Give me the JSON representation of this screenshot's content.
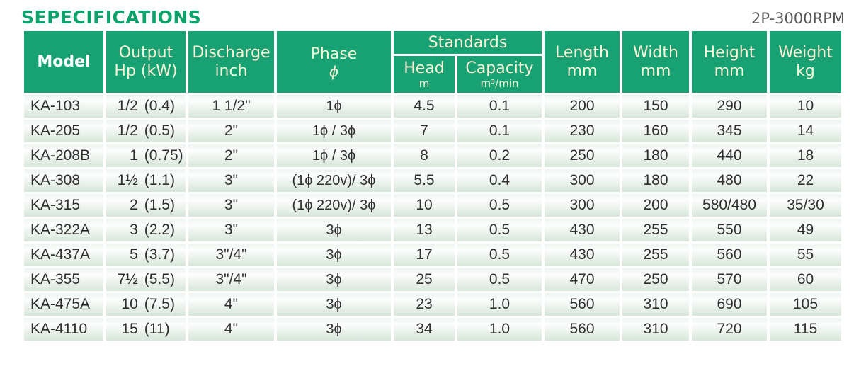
{
  "page": {
    "title": "SEPECIFICATIONS",
    "rpm_label": "2P-3000RPM"
  },
  "colors": {
    "header_green": "#18a273",
    "title_green": "#0ba36c",
    "rpm_gray": "#56585c",
    "header_text_cream": "#f9f2d8",
    "body_text": "#2f2f2f",
    "row_green_tint": "#d7e6da"
  },
  "table": {
    "headers": {
      "model": "Model",
      "output": {
        "label": "Output",
        "unit": "Hp (kW)"
      },
      "discharge": {
        "label": "Discharge",
        "unit": "inch"
      },
      "phase": {
        "label": "Phase",
        "unit": "ϕ"
      },
      "standards": "Standards",
      "head": {
        "label": "Head",
        "unit": "m"
      },
      "capacity": {
        "label": "Capacity",
        "unit": "m³/min"
      },
      "length": {
        "label": "Length",
        "unit": "mm"
      },
      "width": {
        "label": "Width",
        "unit": "mm"
      },
      "height": {
        "label": "Height",
        "unit": "mm"
      },
      "weight": {
        "label": "Weight",
        "unit": "kg"
      }
    },
    "rows": [
      {
        "model": "KA-103",
        "hp": "1/2",
        "kw": "(0.4)",
        "discharge": "1 1/2\"",
        "phase": "1ϕ",
        "head": "4.5",
        "capacity": "0.1",
        "length": "200",
        "width": "150",
        "height": "290",
        "weight": "10"
      },
      {
        "model": "KA-205",
        "hp": "1/2",
        "kw": "(0.5)",
        "discharge": "2\"",
        "phase": "1ϕ / 3ϕ",
        "head": "7",
        "capacity": "0.1",
        "length": "230",
        "width": "160",
        "height": "345",
        "weight": "14"
      },
      {
        "model": "KA-208B",
        "hp": "1",
        "kw": "(0.75)",
        "discharge": "2\"",
        "phase": "1ϕ / 3ϕ",
        "head": "8",
        "capacity": "0.2",
        "length": "250",
        "width": "180",
        "height": "440",
        "weight": "18"
      },
      {
        "model": "KA-308",
        "hp": "1½",
        "kw": "(1.1)",
        "discharge": "3\"",
        "phase": "(1ϕ 220v)/ 3ϕ",
        "head": "5.5",
        "capacity": "0.4",
        "length": "300",
        "width": "180",
        "height": "480",
        "weight": "22"
      },
      {
        "model": "KA-315",
        "hp": "2",
        "kw": "(1.5)",
        "discharge": "3\"",
        "phase": "(1ϕ 220v)/ 3ϕ",
        "head": "10",
        "capacity": "0.5",
        "length": "300",
        "width": "200",
        "height": "580/480",
        "weight": "35/30"
      },
      {
        "model": "KA-322A",
        "hp": "3",
        "kw": "(2.2)",
        "discharge": "3\"",
        "phase": "3ϕ",
        "head": "13",
        "capacity": "0.5",
        "length": "430",
        "width": "255",
        "height": "550",
        "weight": "49"
      },
      {
        "model": "KA-437A",
        "hp": "5",
        "kw": "(3.7)",
        "discharge": "3\"/4\"",
        "phase": "3ϕ",
        "head": "17",
        "capacity": "0.5",
        "length": "430",
        "width": "255",
        "height": "560",
        "weight": "55"
      },
      {
        "model": "KA-355",
        "hp": "7½",
        "kw": "(5.5)",
        "discharge": "3\"/4\"",
        "phase": "3ϕ",
        "head": "25",
        "capacity": "0.5",
        "length": "470",
        "width": "250",
        "height": "570",
        "weight": "60"
      },
      {
        "model": "KA-475A",
        "hp": "10",
        "kw": "(7.5)",
        "discharge": "4\"",
        "phase": "3ϕ",
        "head": "23",
        "capacity": "1.0",
        "length": "560",
        "width": "310",
        "height": "690",
        "weight": "105"
      },
      {
        "model": "KA-4110",
        "hp": "15",
        "kw": "(11)",
        "discharge": "4\"",
        "phase": "3ϕ",
        "head": "34",
        "capacity": "1.0",
        "length": "560",
        "width": "310",
        "height": "720",
        "weight": "115"
      }
    ]
  }
}
